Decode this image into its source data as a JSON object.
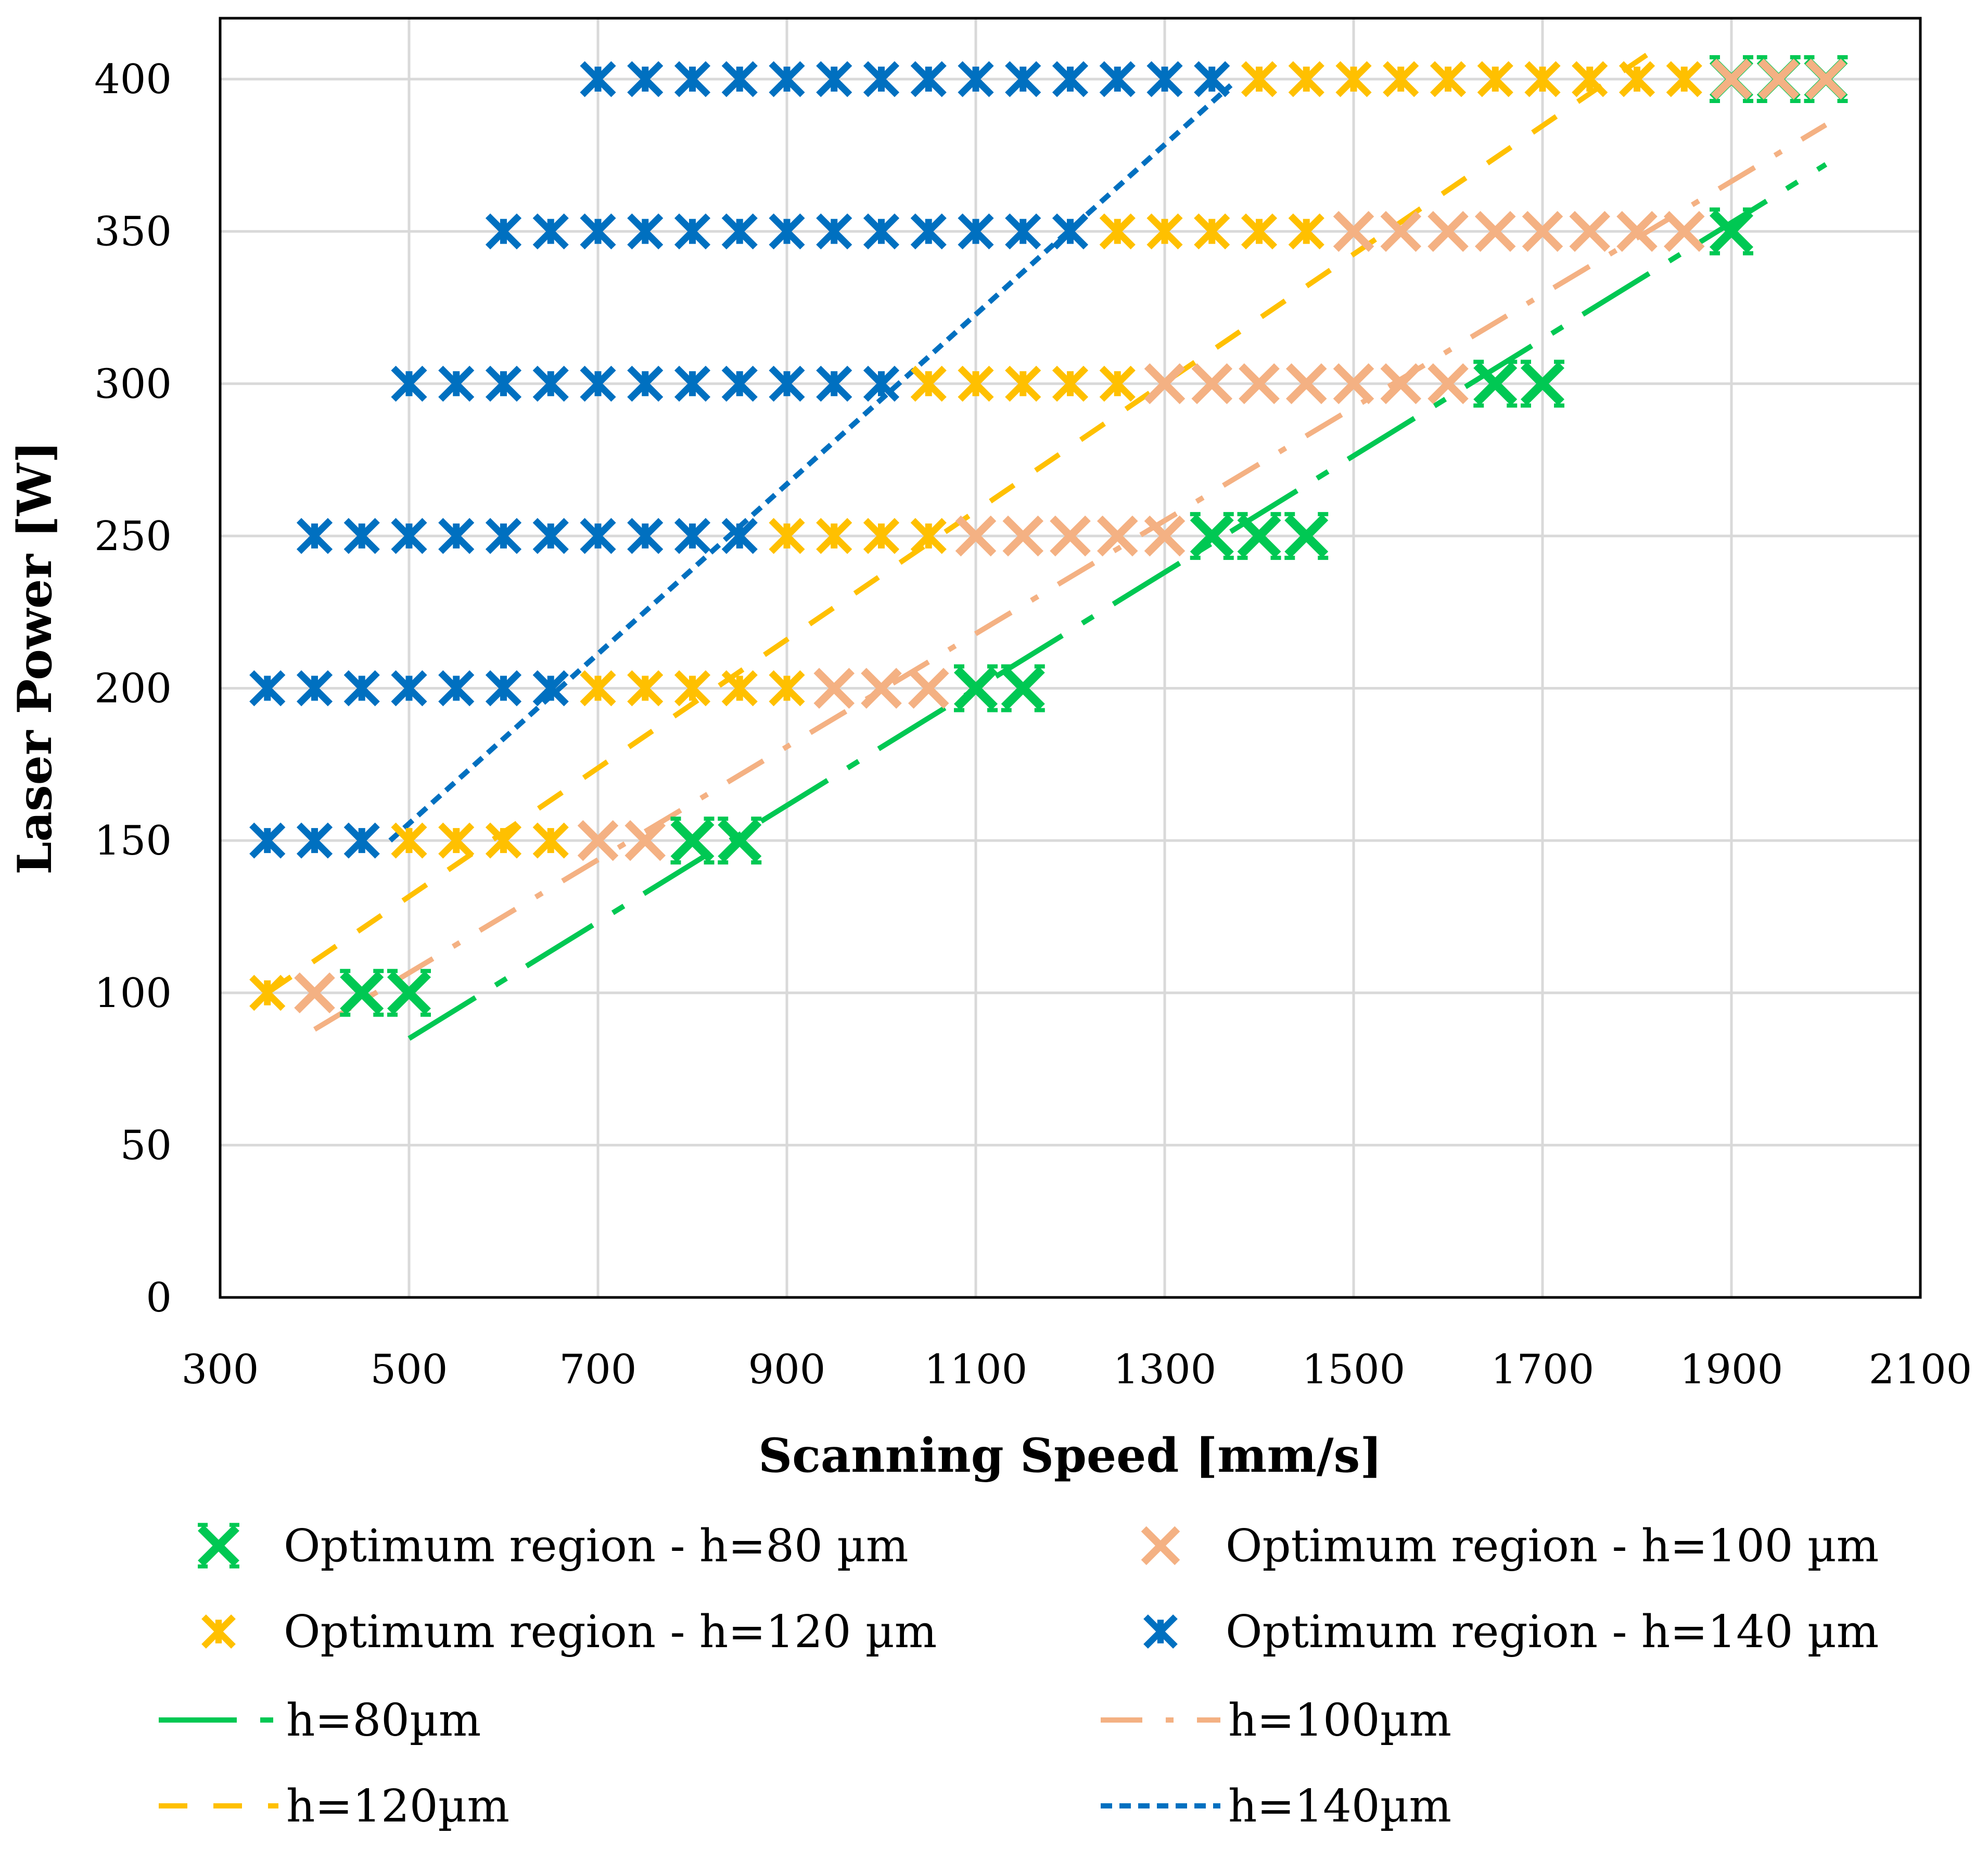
{
  "chart_data": {
    "type": "scatter",
    "title": "",
    "xlabel": "Scanning Speed [mm/s]",
    "ylabel": "Laser Power [W]",
    "xlim": [
      300,
      2100
    ],
    "ylim": [
      0,
      420
    ],
    "x_ticks": [
      300,
      500,
      700,
      900,
      1100,
      1300,
      1500,
      1700,
      1900,
      2100
    ],
    "y_ticks": [
      0,
      50,
      100,
      150,
      200,
      250,
      300,
      350,
      400
    ],
    "grid": true,
    "legend_position": "bottom",
    "series": [
      {
        "name": "Optimum region - h=80 µm",
        "kind": "marker",
        "marker": "bold-x",
        "color": "#00C853",
        "points": [
          [
            450,
            100
          ],
          [
            500,
            100
          ],
          [
            800,
            150
          ],
          [
            850,
            150
          ],
          [
            1100,
            200
          ],
          [
            1150,
            200
          ],
          [
            1350,
            250
          ],
          [
            1400,
            250
          ],
          [
            1450,
            250
          ],
          [
            1650,
            300
          ],
          [
            1700,
            300
          ],
          [
            1900,
            350
          ],
          [
            1900,
            400
          ],
          [
            1950,
            400
          ],
          [
            2000,
            400
          ]
        ]
      },
      {
        "name": "Optimum region - h=100 µm",
        "kind": "marker",
        "marker": "x",
        "color": "#F4B183",
        "points": [
          [
            400,
            100
          ],
          [
            700,
            150
          ],
          [
            750,
            150
          ],
          [
            950,
            200
          ],
          [
            1000,
            200
          ],
          [
            1050,
            200
          ],
          [
            1100,
            250
          ],
          [
            1150,
            250
          ],
          [
            1200,
            250
          ],
          [
            1250,
            250
          ],
          [
            1300,
            250
          ],
          [
            1300,
            300
          ],
          [
            1350,
            300
          ],
          [
            1400,
            300
          ],
          [
            1450,
            300
          ],
          [
            1500,
            300
          ],
          [
            1550,
            300
          ],
          [
            1600,
            300
          ],
          [
            1500,
            350
          ],
          [
            1550,
            350
          ],
          [
            1600,
            350
          ],
          [
            1650,
            350
          ],
          [
            1700,
            350
          ],
          [
            1750,
            350
          ],
          [
            1800,
            350
          ],
          [
            1850,
            350
          ],
          [
            1900,
            400
          ],
          [
            1950,
            400
          ],
          [
            2000,
            400
          ]
        ]
      },
      {
        "name": "Optimum region - h=120 µm",
        "kind": "marker",
        "marker": "asterisk",
        "color": "#FFC000",
        "points": [
          [
            350,
            100
          ],
          [
            500,
            150
          ],
          [
            550,
            150
          ],
          [
            600,
            150
          ],
          [
            650,
            150
          ],
          [
            700,
            200
          ],
          [
            750,
            200
          ],
          [
            800,
            200
          ],
          [
            850,
            200
          ],
          [
            900,
            200
          ],
          [
            900,
            250
          ],
          [
            950,
            250
          ],
          [
            1000,
            250
          ],
          [
            1050,
            250
          ],
          [
            1050,
            300
          ],
          [
            1100,
            300
          ],
          [
            1150,
            300
          ],
          [
            1200,
            300
          ],
          [
            1250,
            300
          ],
          [
            1250,
            350
          ],
          [
            1300,
            350
          ],
          [
            1350,
            350
          ],
          [
            1400,
            350
          ],
          [
            1450,
            350
          ],
          [
            1400,
            400
          ],
          [
            1450,
            400
          ],
          [
            1500,
            400
          ],
          [
            1550,
            400
          ],
          [
            1600,
            400
          ],
          [
            1650,
            400
          ],
          [
            1700,
            400
          ],
          [
            1750,
            400
          ],
          [
            1800,
            400
          ],
          [
            1850,
            400
          ]
        ]
      },
      {
        "name": "Optimum region - h=140 µm",
        "kind": "marker",
        "marker": "asterisk",
        "color": "#0070C0",
        "points": [
          [
            350,
            150
          ],
          [
            400,
            150
          ],
          [
            450,
            150
          ],
          [
            350,
            200
          ],
          [
            400,
            200
          ],
          [
            450,
            200
          ],
          [
            500,
            200
          ],
          [
            550,
            200
          ],
          [
            600,
            200
          ],
          [
            650,
            200
          ],
          [
            400,
            250
          ],
          [
            450,
            250
          ],
          [
            500,
            250
          ],
          [
            550,
            250
          ],
          [
            600,
            250
          ],
          [
            650,
            250
          ],
          [
            700,
            250
          ],
          [
            750,
            250
          ],
          [
            800,
            250
          ],
          [
            850,
            250
          ],
          [
            500,
            300
          ],
          [
            550,
            300
          ],
          [
            600,
            300
          ],
          [
            650,
            300
          ],
          [
            700,
            300
          ],
          [
            750,
            300
          ],
          [
            800,
            300
          ],
          [
            850,
            300
          ],
          [
            900,
            300
          ],
          [
            950,
            300
          ],
          [
            1000,
            300
          ],
          [
            600,
            350
          ],
          [
            650,
            350
          ],
          [
            700,
            350
          ],
          [
            750,
            350
          ],
          [
            800,
            350
          ],
          [
            850,
            350
          ],
          [
            900,
            350
          ],
          [
            950,
            350
          ],
          [
            1000,
            350
          ],
          [
            1050,
            350
          ],
          [
            1100,
            350
          ],
          [
            1150,
            350
          ],
          [
            1200,
            350
          ],
          [
            700,
            400
          ],
          [
            750,
            400
          ],
          [
            800,
            400
          ],
          [
            850,
            400
          ],
          [
            900,
            400
          ],
          [
            950,
            400
          ],
          [
            1000,
            400
          ],
          [
            1050,
            400
          ],
          [
            1100,
            400
          ],
          [
            1150,
            400
          ],
          [
            1200,
            400
          ],
          [
            1250,
            400
          ],
          [
            1300,
            400
          ],
          [
            1350,
            400
          ]
        ]
      },
      {
        "name": "h=80µm",
        "kind": "line",
        "dash": "long-dash-dot",
        "color": "#00C853",
        "points": [
          [
            500,
            85
          ],
          [
            2000,
            372
          ]
        ]
      },
      {
        "name": "h=100µm",
        "kind": "line",
        "dash": "dash-dot",
        "color": "#F4B183",
        "points": [
          [
            400,
            88
          ],
          [
            2000,
            385
          ]
        ]
      },
      {
        "name": "h=120µm",
        "kind": "line",
        "dash": "dash",
        "color": "#FFC000",
        "points": [
          [
            350,
            100
          ],
          [
            1820,
            410
          ]
        ]
      },
      {
        "name": "h=140µm",
        "kind": "line",
        "dash": "short-dash",
        "color": "#0070C0",
        "points": [
          [
            480,
            150
          ],
          [
            1370,
            398
          ]
        ]
      }
    ]
  }
}
